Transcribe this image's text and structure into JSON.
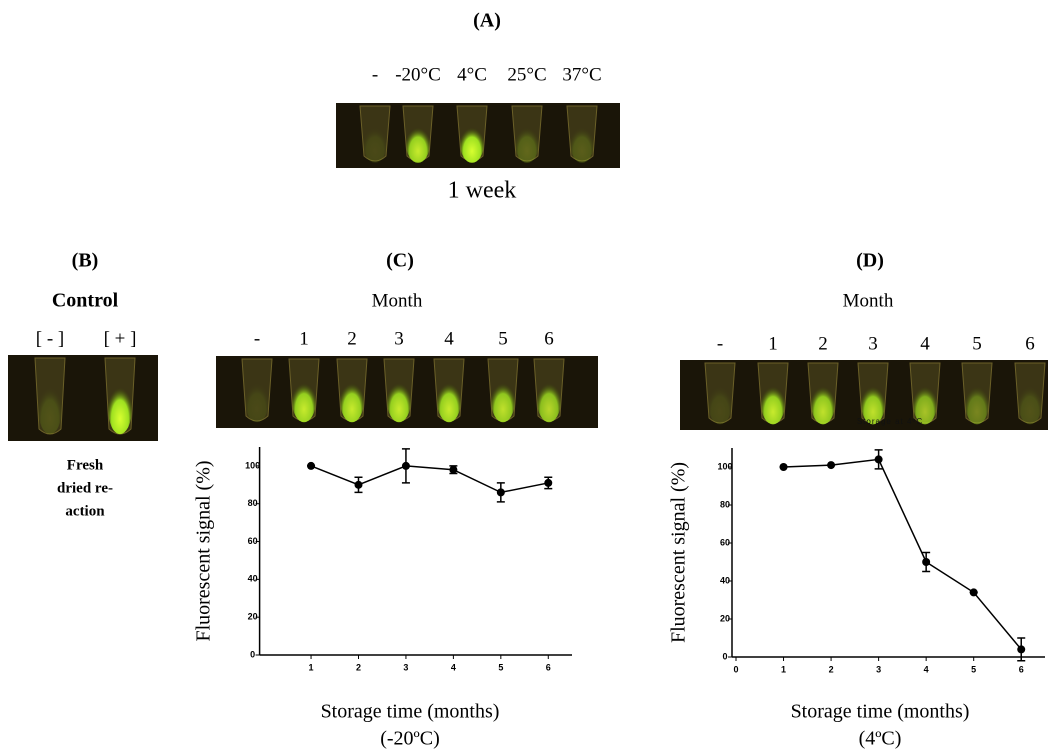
{
  "panels": {
    "a": {
      "label": "(A)",
      "lanes": [
        "-",
        "-20°C",
        "4°C",
        "25°C",
        "37°C"
      ],
      "caption": "1 week"
    },
    "b": {
      "label": "(B)",
      "title": "Control",
      "lanes": [
        "[ - ]",
        "[ + ]"
      ],
      "caption": [
        "Fresh",
        "dried re-",
        "action"
      ]
    },
    "c": {
      "label": "(C)",
      "header": "Month",
      "lanes": [
        "-",
        "1",
        "2",
        "3",
        "4",
        "5",
        "6"
      ]
    },
    "d": {
      "label": "(D)",
      "header": "Month",
      "lanes": [
        "-",
        "1",
        "2",
        "3",
        "4",
        "5",
        "6"
      ],
      "photo_text": "Storage at 4ºC"
    }
  },
  "chart_data": [
    {
      "type": "line",
      "y_label": "Fluorescent signal (%)",
      "x_label": "Storage time (months)",
      "subtitle": "(-20ºC)",
      "x": [
        1,
        2,
        3,
        4,
        5,
        6
      ],
      "series": [
        {
          "color": "#000000",
          "values": [
            100,
            90,
            100,
            98,
            86,
            91
          ],
          "errors": [
            0,
            4,
            9,
            2,
            5,
            3
          ]
        }
      ],
      "xlim": [
        0,
        6.5
      ],
      "xticks": [
        1,
        2,
        3,
        4,
        5,
        6
      ],
      "ylim": [
        0,
        110
      ],
      "yticks": [
        0,
        20,
        40,
        60,
        80,
        100
      ]
    },
    {
      "type": "line",
      "y_label": "Fluorescent signal (%)",
      "x_label": "Storage time (months)",
      "subtitle": "(4ºC)",
      "x": [
        1,
        2,
        3,
        4,
        5,
        6
      ],
      "series": [
        {
          "color": "#000000",
          "values": [
            100,
            101,
            104,
            50,
            34,
            4
          ],
          "errors": [
            0,
            0,
            5,
            5,
            0,
            6
          ]
        }
      ],
      "xlim": [
        0,
        6.5
      ],
      "xticks": [
        0,
        1,
        2,
        3,
        4,
        5,
        6
      ],
      "ylim": [
        0,
        110
      ],
      "yticks": [
        0,
        20,
        40,
        60,
        80,
        100
      ]
    }
  ]
}
